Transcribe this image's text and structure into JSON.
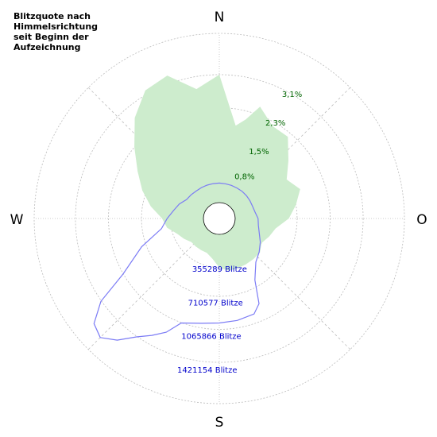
{
  "title_lines": [
    "Blitzquote nach",
    "Himmelsrichtung",
    "seit Beginn der",
    "Aufzeichnung"
  ],
  "colors": {
    "rate_fill": "#cdeccd",
    "count_line": "#7b7bf5",
    "grid": "#bbbbbb",
    "rate_labels": "#006400",
    "count_labels": "#0000cc"
  },
  "chart_data": {
    "type": "polar-area",
    "title": "Blitzquote nach Himmelsrichtung seit Beginn der Aufzeichnung",
    "direction_labels": [
      "N",
      "O",
      "S",
      "W"
    ],
    "rate_axis": {
      "unit": "%",
      "ticks": [
        {
          "value": 0.8,
          "label": "0,8%"
        },
        {
          "value": 1.5,
          "label": "1,5%"
        },
        {
          "value": 2.3,
          "label": "2,3%"
        },
        {
          "value": 3.1,
          "label": "3,1%"
        }
      ],
      "max": 4.1
    },
    "count_axis": {
      "unit": "Blitze",
      "ticks": [
        {
          "value": 355289,
          "label": "355289 Blitze"
        },
        {
          "value": 710577,
          "label": "710577 Blitze"
        },
        {
          "value": 1065866,
          "label": "1065866 Blitze"
        },
        {
          "value": 1421154,
          "label": "1421154 Blitze"
        }
      ],
      "max": 1776443
    },
    "series": [
      {
        "kind": "area",
        "quantity": "rate_percent",
        "bearing_deg": [
          0,
          10,
          15,
          20,
          30,
          40,
          50,
          60,
          70,
          80,
          90,
          100,
          110,
          120,
          130,
          140,
          150,
          160,
          170,
          180,
          190,
          200,
          210,
          220,
          230,
          240,
          250,
          260,
          270,
          280,
          290,
          300,
          310,
          320,
          330,
          340,
          350
        ],
        "values": [
          3.1,
          1.9,
          2.1,
          2.5,
          2.2,
          2.2,
          1.8,
          1.5,
          1.7,
          1.5,
          1.3,
          1.0,
          0.9,
          0.8,
          0.9,
          0.9,
          0.9,
          0.9,
          0.9,
          0.8,
          0.6,
          0.5,
          0.5,
          0.5,
          0.5,
          0.6,
          0.7,
          0.9,
          1.0,
          1.3,
          1.6,
          1.9,
          2.3,
          2.8,
          3.2,
          3.3,
          2.8
        ]
      },
      {
        "kind": "line",
        "quantity": "lightning_count",
        "bearing_deg": [
          0,
          10,
          20,
          30,
          40,
          50,
          60,
          70,
          80,
          90,
          100,
          110,
          120,
          130,
          140,
          150,
          155,
          160,
          170,
          180,
          190,
          200,
          205,
          210,
          215,
          220,
          225,
          230,
          235,
          240,
          250,
          260,
          270,
          280,
          290,
          300,
          310,
          320,
          330,
          340,
          350
        ],
        "values": [
          205000,
          203000,
          203000,
          203000,
          205000,
          205000,
          205000,
          205000,
          215000,
          240000,
          250000,
          280000,
          330000,
          380000,
          430000,
          580000,
          820000,
          900000,
          920000,
          930000,
          950000,
          1000000,
          1150000,
          1250000,
          1350000,
          1500000,
          1600000,
          1550000,
          1350000,
          1000000,
          700000,
          450000,
          380000,
          320000,
          280000,
          230000,
          220000,
          210000,
          208000,
          206000,
          205000
        ]
      }
    ]
  }
}
